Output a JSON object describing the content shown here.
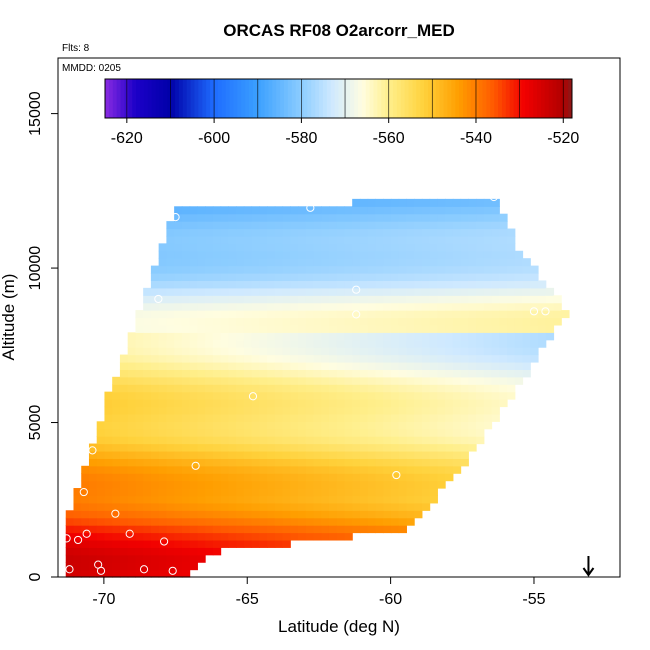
{
  "chart_data": {
    "type": "heatmap",
    "title": "ORCAS RF08 O2arcorr_MED",
    "subtitle_flts": "Flts: 8",
    "annotation_mmdd": "MMDD: 0205",
    "xlabel": "Latitude (deg N)",
    "ylabel": "Altitude (m)",
    "xlim": [
      -71.6,
      -52.0
    ],
    "ylim": [
      0,
      16800
    ],
    "x_ticks": [
      -70,
      -65,
      -60,
      -55
    ],
    "x_tick_labels": [
      "-70",
      "-65",
      "-60",
      "-55"
    ],
    "y_ticks": [
      0,
      5000,
      10000,
      15000
    ],
    "y_tick_labels": [
      "0",
      "5000",
      "10000",
      "15000"
    ],
    "colorbar": {
      "range": [
        -625,
        -518
      ],
      "ticks": [
        -620,
        -600,
        -580,
        -560,
        -540,
        -520
      ],
      "tick_labels": [
        "-620",
        "-600",
        "-580",
        "-560",
        "-540",
        "-520"
      ],
      "boundaries": [
        -625,
        -620,
        -610,
        -600,
        -590,
        -580,
        -570,
        -560,
        -550,
        -540,
        -530,
        -520,
        -518
      ],
      "stops": [
        {
          "v": -625,
          "c": "#8a2be2"
        },
        {
          "v": -618,
          "c": "#1c00c8"
        },
        {
          "v": -610,
          "c": "#0000a8"
        },
        {
          "v": -600,
          "c": "#1e6cff"
        },
        {
          "v": -590,
          "c": "#3ba0ff"
        },
        {
          "v": -580,
          "c": "#8ccdff"
        },
        {
          "v": -573,
          "c": "#cfe9ff"
        },
        {
          "v": -566,
          "c": "#fffde0"
        },
        {
          "v": -560,
          "c": "#ffef8c"
        },
        {
          "v": -552,
          "c": "#ffd23c"
        },
        {
          "v": -544,
          "c": "#ff9e00"
        },
        {
          "v": -536,
          "c": "#ff5a00"
        },
        {
          "v": -529,
          "c": "#f20000"
        },
        {
          "v": -520,
          "c": "#b00000"
        },
        {
          "v": -518,
          "c": "#8b1a1a"
        }
      ]
    },
    "field_polygon": [
      [
        -71.4,
        0
      ],
      [
        -67.3,
        0
      ],
      [
        -66.2,
        800
      ],
      [
        -59.5,
        1500
      ],
      [
        -57.5,
        3500
      ],
      [
        -53.8,
        8600
      ],
      [
        -55.5,
        10600
      ],
      [
        -56.4,
        12300
      ],
      [
        -67.6,
        11900
      ],
      [
        -68.0,
        10600
      ],
      [
        -68.6,
        9000
      ],
      [
        -70.0,
        5500
      ],
      [
        -70.4,
        4200
      ],
      [
        -71.4,
        1500
      ]
    ],
    "value_model": {
      "top_band": {
        "lat_center": -60,
        "alt_top": 12300,
        "alt_bottom": 9000,
        "value_at_top": -585,
        "value_at_bottom": -572
      },
      "layers": [
        {
          "alt": 500,
          "value": -530
        },
        {
          "alt": 1500,
          "value": -534
        },
        {
          "alt": 2500,
          "value": -544
        },
        {
          "alt": 3500,
          "value": -548
        },
        {
          "alt": 4500,
          "value": -553
        },
        {
          "alt": 5500,
          "value": -556
        },
        {
          "alt": 6500,
          "value": -560
        },
        {
          "alt": 7500,
          "value": -564
        },
        {
          "alt": 8500,
          "value": -568
        },
        {
          "alt": 9500,
          "value": -575
        },
        {
          "alt": 10500,
          "value": -580
        },
        {
          "alt": 11500,
          "value": -584
        },
        {
          "alt": 12300,
          "value": -586
        }
      ],
      "lat_gradient": 0.9
    },
    "samples": [
      {
        "lat": -71.2,
        "alt": 250
      },
      {
        "lat": -70.1,
        "alt": 200
      },
      {
        "lat": -68.6,
        "alt": 250
      },
      {
        "lat": -67.6,
        "alt": 200
      },
      {
        "lat": -70.2,
        "alt": 400
      },
      {
        "lat": -71.3,
        "alt": 1250
      },
      {
        "lat": -70.9,
        "alt": 1200
      },
      {
        "lat": -70.6,
        "alt": 1400
      },
      {
        "lat": -69.6,
        "alt": 2050
      },
      {
        "lat": -69.1,
        "alt": 1400
      },
      {
        "lat": -67.9,
        "alt": 1150
      },
      {
        "lat": -70.7,
        "alt": 2750
      },
      {
        "lat": -70.4,
        "alt": 4100
      },
      {
        "lat": -66.8,
        "alt": 3600
      },
      {
        "lat": -64.8,
        "alt": 5850
      },
      {
        "lat": -62.7,
        "alt": 650
      },
      {
        "lat": -59.8,
        "alt": 3300
      },
      {
        "lat": -59.3,
        "alt": 750
      },
      {
        "lat": -68.1,
        "alt": 9000
      },
      {
        "lat": -67.5,
        "alt": 11650
      },
      {
        "lat": -62.8,
        "alt": 11950
      },
      {
        "lat": -61.2,
        "alt": 9300
      },
      {
        "lat": -61.2,
        "alt": 8500
      },
      {
        "lat": -56.4,
        "alt": 12300
      },
      {
        "lat": -55.0,
        "alt": 8600
      },
      {
        "lat": -54.6,
        "alt": 8600
      }
    ],
    "arrow": {
      "lat": -53.1,
      "direction": "down"
    }
  }
}
